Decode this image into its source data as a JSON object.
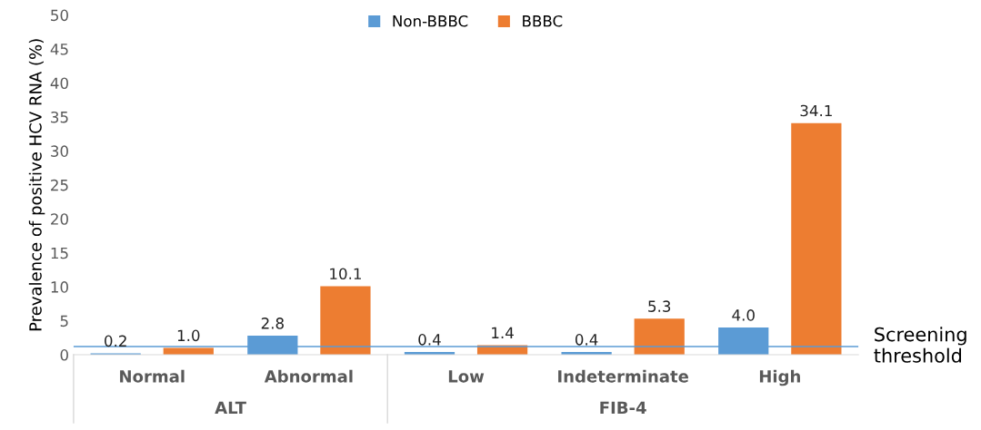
{
  "chart_data": {
    "type": "bar",
    "ylabel": "Prevalence of positive HCV RNA (%)",
    "categories": [
      "Normal",
      "Abnormal",
      "Low",
      "Indeterminate",
      "High"
    ],
    "series": [
      {
        "name": "Non-BBBC",
        "color": "#5b9bd5",
        "values": [
          0.2,
          2.8,
          0.4,
          0.4,
          4.0
        ],
        "value_labels": [
          "0.2",
          "2.8",
          "0.4",
          "0.4",
          "4.0"
        ]
      },
      {
        "name": "BBBC",
        "color": "#ed7d31",
        "values": [
          1.0,
          10.1,
          1.4,
          5.3,
          34.1
        ],
        "value_labels": [
          "1.0",
          "10.1",
          "1.4",
          "5.3",
          "34.1"
        ]
      }
    ],
    "ylim": [
      0,
      50
    ],
    "yticks": [
      0,
      5,
      10,
      15,
      20,
      25,
      30,
      35,
      40,
      45,
      50
    ],
    "ref_lines": [
      {
        "axis": "y",
        "value": 1.2,
        "label": "Screening\nthreshold",
        "color": "#5b9bd5"
      }
    ],
    "annotations": [
      "ALT",
      "FIB-4"
    ],
    "grid": false,
    "legend": "top"
  }
}
